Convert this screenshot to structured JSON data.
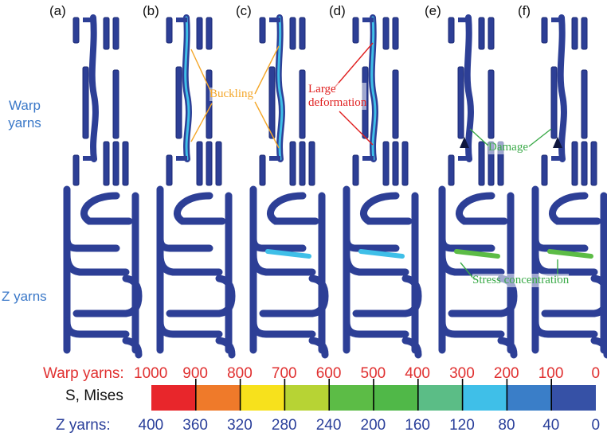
{
  "panel_labels": [
    "(a)",
    "(b)",
    "(c)",
    "(d)",
    "(e)",
    "(f)"
  ],
  "row_labels": {
    "warp": "Warp\nyarns",
    "z": "Z yarns"
  },
  "annotations": {
    "buckling": "Buckling",
    "large_deformation": "Large\ndeformation",
    "damage": "Damage",
    "stress_concentration": "Stress concentration"
  },
  "legend": {
    "warp_label": "Warp yarns:",
    "warp_ticks": [
      "1000",
      "900",
      "800",
      "700",
      "600",
      "500",
      "400",
      "300",
      "200",
      "100",
      "0"
    ],
    "mid_label": "S, Mises",
    "z_label": "Z yarns:",
    "z_ticks": [
      "400",
      "360",
      "320",
      "280",
      "240",
      "200",
      "160",
      "120",
      "80",
      "40",
      "0"
    ],
    "colors": [
      "#e8262b",
      "#ef7a2a",
      "#f7e11c",
      "#b7d334",
      "#5cbc46",
      "#50b848",
      "#5bbd86",
      "#3fbfe8",
      "#3a7ec8",
      "#3651a6"
    ]
  },
  "colors": {
    "yarn": "#2d3f96",
    "yarn_edge": "#1b2a74",
    "warp_label": "#e03030",
    "z_label": "#2a3f9a",
    "row_label": "#3a78c8",
    "buckling": "#f4a72a",
    "large_deformation": "#e02020",
    "damage": "#3aaa48"
  }
}
